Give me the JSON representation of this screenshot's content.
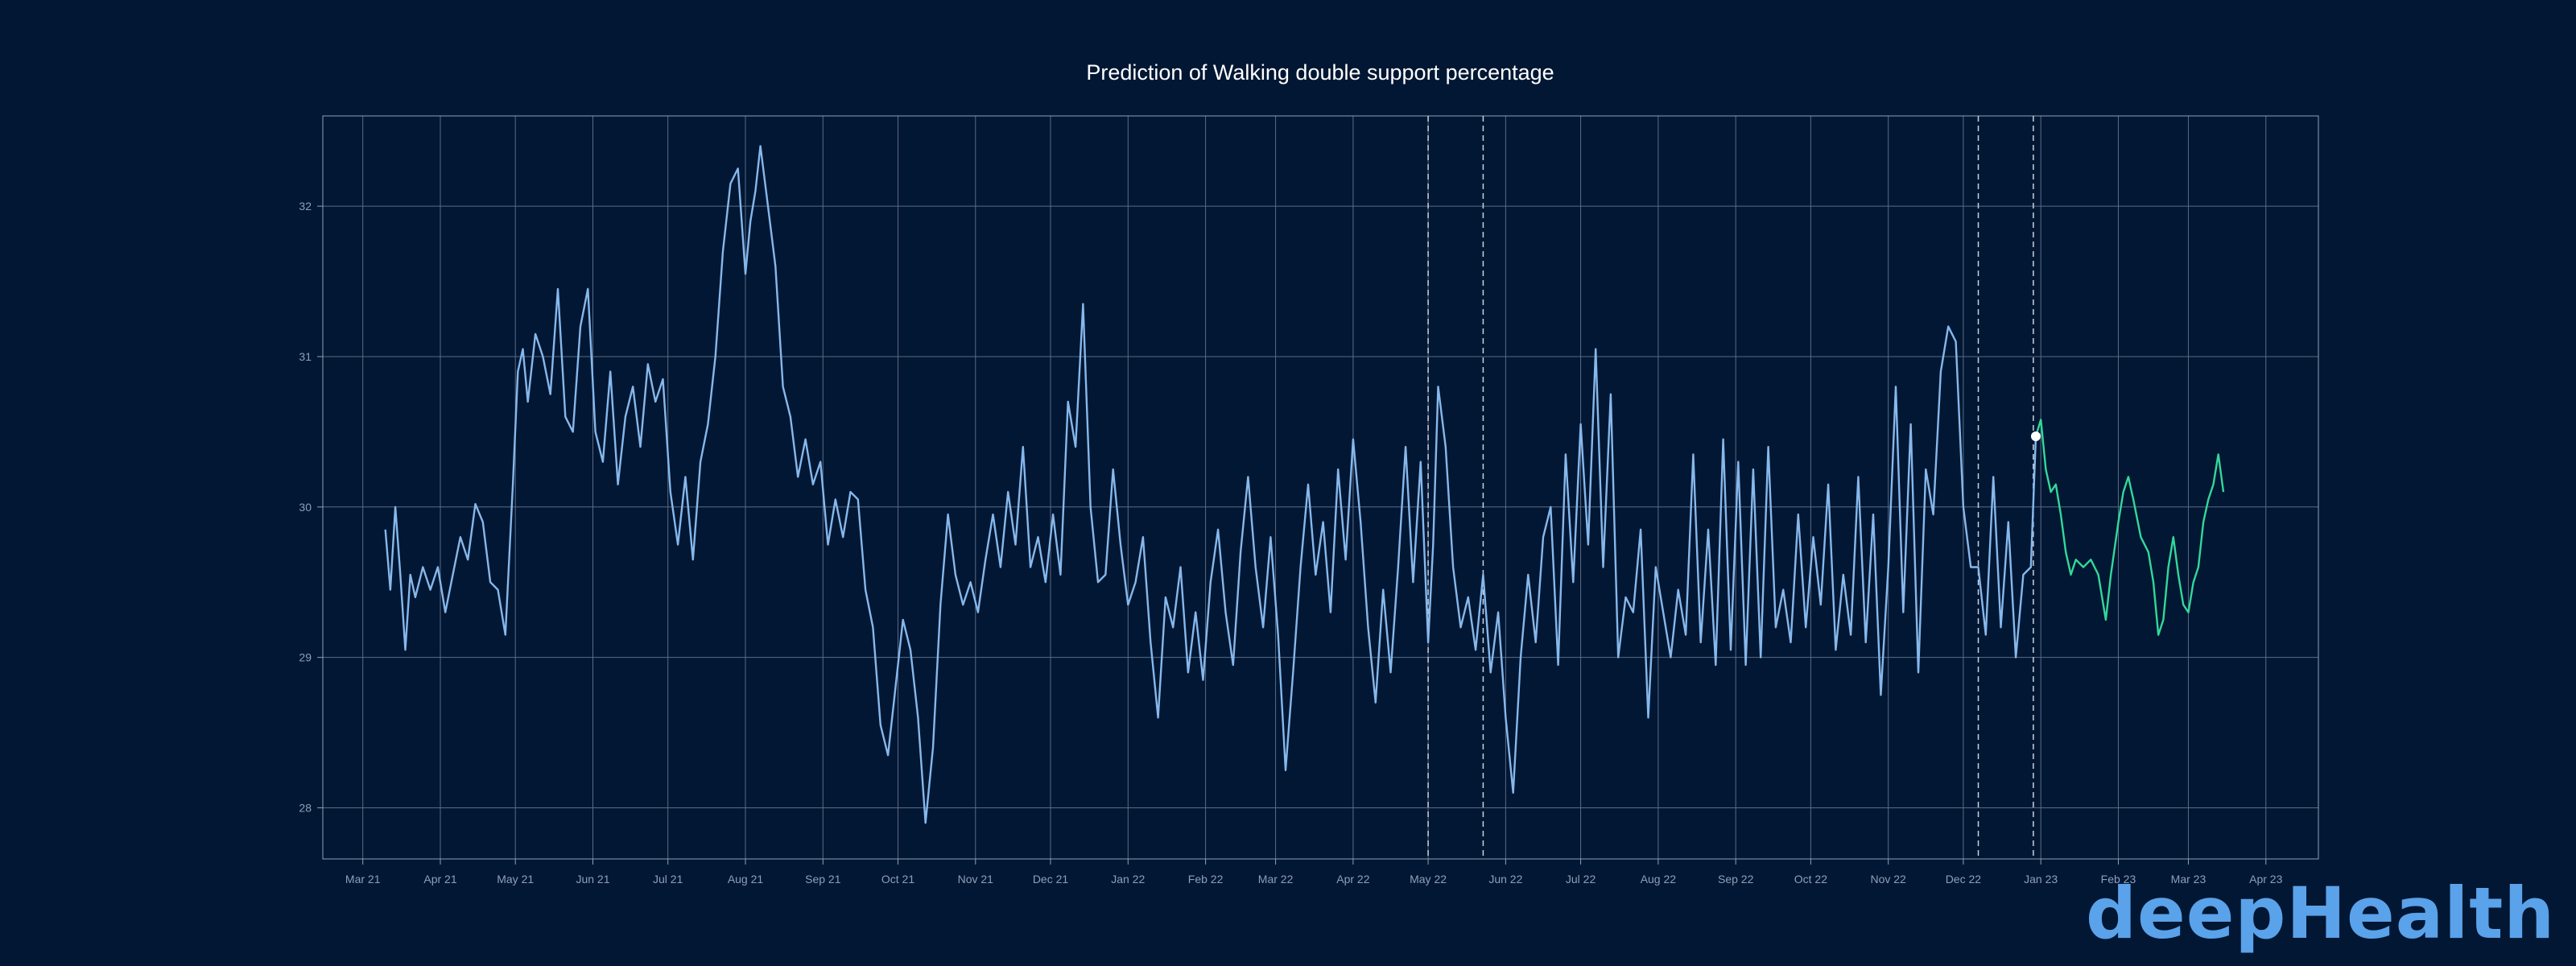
{
  "chart_data": {
    "type": "line",
    "title": "Prediction of Walking double support percentage",
    "xlabel": "",
    "ylabel": "",
    "x_ticks": [
      "Mar 21",
      "Apr 21",
      "May 21",
      "Jun 21",
      "Jul 21",
      "Aug 21",
      "Sep 21",
      "Oct 21",
      "Nov 21",
      "Dec 21",
      "Jan 22",
      "Feb 22",
      "Mar 22",
      "Apr 22",
      "May 22",
      "Jun 22",
      "Jul 22",
      "Aug 22",
      "Sep 22",
      "Oct 22",
      "Nov 22",
      "Dec 22",
      "Jan 23",
      "Feb 23",
      "Mar 23",
      "Apr 23"
    ],
    "y_ticks": [
      28,
      29,
      30,
      31,
      32
    ],
    "xlim": [
      "2021-02-13",
      "2023-04-22"
    ],
    "ylim": [
      27.66,
      32.6
    ],
    "grid": true,
    "legend": "none",
    "series_colors": {
      "history": "#86b8ec",
      "forecast": "#33d89a",
      "axis": "#8f9fb8",
      "grid": "#5b6b86"
    },
    "vlines": [
      "2022-05-01",
      "2022-05-23",
      "2022-12-07",
      "2022-12-29"
    ],
    "marker": {
      "x": "2022-12-30",
      "y": 30.47
    },
    "series": [
      {
        "role": "history",
        "points": [
          [
            "2021-03-10",
            29.85
          ],
          [
            "2021-03-12",
            29.45
          ],
          [
            "2021-03-14",
            30.0
          ],
          [
            "2021-03-16",
            29.55
          ],
          [
            "2021-03-18",
            29.05
          ],
          [
            "2021-03-20",
            29.55
          ],
          [
            "2021-03-22",
            29.4
          ],
          [
            "2021-03-25",
            29.6
          ],
          [
            "2021-03-28",
            29.45
          ],
          [
            "2021-03-31",
            29.6
          ],
          [
            "2021-04-03",
            29.3
          ],
          [
            "2021-04-06",
            29.55
          ],
          [
            "2021-04-09",
            29.8
          ],
          [
            "2021-04-12",
            29.65
          ],
          [
            "2021-04-15",
            30.02
          ],
          [
            "2021-04-18",
            29.9
          ],
          [
            "2021-04-21",
            29.5
          ],
          [
            "2021-04-24",
            29.45
          ],
          [
            "2021-04-27",
            29.15
          ],
          [
            "2021-04-30",
            30.15
          ],
          [
            "2021-05-02",
            30.9
          ],
          [
            "2021-05-04",
            31.05
          ],
          [
            "2021-05-06",
            30.7
          ],
          [
            "2021-05-09",
            31.15
          ],
          [
            "2021-05-12",
            31.0
          ],
          [
            "2021-05-15",
            30.75
          ],
          [
            "2021-05-18",
            31.45
          ],
          [
            "2021-05-21",
            30.6
          ],
          [
            "2021-05-24",
            30.5
          ],
          [
            "2021-05-27",
            31.2
          ],
          [
            "2021-05-30",
            31.45
          ],
          [
            "2021-06-02",
            30.5
          ],
          [
            "2021-06-05",
            30.3
          ],
          [
            "2021-06-08",
            30.9
          ],
          [
            "2021-06-11",
            30.15
          ],
          [
            "2021-06-14",
            30.6
          ],
          [
            "2021-06-17",
            30.8
          ],
          [
            "2021-06-20",
            30.4
          ],
          [
            "2021-06-23",
            30.95
          ],
          [
            "2021-06-26",
            30.7
          ],
          [
            "2021-06-29",
            30.85
          ],
          [
            "2021-07-02",
            30.1
          ],
          [
            "2021-07-05",
            29.75
          ],
          [
            "2021-07-08",
            30.2
          ],
          [
            "2021-07-11",
            29.65
          ],
          [
            "2021-07-14",
            30.3
          ],
          [
            "2021-07-17",
            30.55
          ],
          [
            "2021-07-20",
            31.0
          ],
          [
            "2021-07-23",
            31.7
          ],
          [
            "2021-07-26",
            32.15
          ],
          [
            "2021-07-29",
            32.25
          ],
          [
            "2021-08-01",
            31.55
          ],
          [
            "2021-08-03",
            31.9
          ],
          [
            "2021-08-05",
            32.1
          ],
          [
            "2021-08-07",
            32.4
          ],
          [
            "2021-08-10",
            32.0
          ],
          [
            "2021-08-13",
            31.6
          ],
          [
            "2021-08-16",
            30.8
          ],
          [
            "2021-08-19",
            30.6
          ],
          [
            "2021-08-22",
            30.2
          ],
          [
            "2021-08-25",
            30.45
          ],
          [
            "2021-08-28",
            30.15
          ],
          [
            "2021-08-31",
            30.3
          ],
          [
            "2021-09-03",
            29.75
          ],
          [
            "2021-09-06",
            30.05
          ],
          [
            "2021-09-09",
            29.8
          ],
          [
            "2021-09-12",
            30.1
          ],
          [
            "2021-09-15",
            30.05
          ],
          [
            "2021-09-18",
            29.45
          ],
          [
            "2021-09-21",
            29.2
          ],
          [
            "2021-09-24",
            28.55
          ],
          [
            "2021-09-27",
            28.35
          ],
          [
            "2021-09-30",
            28.8
          ],
          [
            "2021-10-03",
            29.25
          ],
          [
            "2021-10-06",
            29.05
          ],
          [
            "2021-10-09",
            28.6
          ],
          [
            "2021-10-12",
            27.9
          ],
          [
            "2021-10-15",
            28.4
          ],
          [
            "2021-10-18",
            29.35
          ],
          [
            "2021-10-21",
            29.95
          ],
          [
            "2021-10-24",
            29.55
          ],
          [
            "2021-10-27",
            29.35
          ],
          [
            "2021-10-30",
            29.5
          ],
          [
            "2021-11-02",
            29.3
          ],
          [
            "2021-11-05",
            29.65
          ],
          [
            "2021-11-08",
            29.95
          ],
          [
            "2021-11-11",
            29.6
          ],
          [
            "2021-11-14",
            30.1
          ],
          [
            "2021-11-17",
            29.75
          ],
          [
            "2021-11-20",
            30.4
          ],
          [
            "2021-11-23",
            29.6
          ],
          [
            "2021-11-26",
            29.8
          ],
          [
            "2021-11-29",
            29.5
          ],
          [
            "2021-12-02",
            29.95
          ],
          [
            "2021-12-05",
            29.55
          ],
          [
            "2021-12-08",
            30.7
          ],
          [
            "2021-12-11",
            30.4
          ],
          [
            "2021-12-14",
            31.35
          ],
          [
            "2021-12-17",
            30.0
          ],
          [
            "2021-12-20",
            29.5
          ],
          [
            "2021-12-23",
            29.55
          ],
          [
            "2021-12-26",
            30.25
          ],
          [
            "2021-12-29",
            29.75
          ],
          [
            "2022-01-01",
            29.35
          ],
          [
            "2022-01-04",
            29.5
          ],
          [
            "2022-01-07",
            29.8
          ],
          [
            "2022-01-10",
            29.1
          ],
          [
            "2022-01-13",
            28.6
          ],
          [
            "2022-01-16",
            29.4
          ],
          [
            "2022-01-19",
            29.2
          ],
          [
            "2022-01-22",
            29.6
          ],
          [
            "2022-01-25",
            28.9
          ],
          [
            "2022-01-28",
            29.3
          ],
          [
            "2022-01-31",
            28.85
          ],
          [
            "2022-02-03",
            29.5
          ],
          [
            "2022-02-06",
            29.85
          ],
          [
            "2022-02-09",
            29.3
          ],
          [
            "2022-02-12",
            28.95
          ],
          [
            "2022-02-15",
            29.7
          ],
          [
            "2022-02-18",
            30.2
          ],
          [
            "2022-02-21",
            29.6
          ],
          [
            "2022-02-24",
            29.2
          ],
          [
            "2022-02-27",
            29.8
          ],
          [
            "2022-03-02",
            29.15
          ],
          [
            "2022-03-05",
            28.25
          ],
          [
            "2022-03-08",
            28.9
          ],
          [
            "2022-03-11",
            29.6
          ],
          [
            "2022-03-14",
            30.15
          ],
          [
            "2022-03-17",
            29.55
          ],
          [
            "2022-03-20",
            29.9
          ],
          [
            "2022-03-23",
            29.3
          ],
          [
            "2022-03-26",
            30.25
          ],
          [
            "2022-03-29",
            29.65
          ],
          [
            "2022-04-01",
            30.45
          ],
          [
            "2022-04-04",
            29.9
          ],
          [
            "2022-04-07",
            29.2
          ],
          [
            "2022-04-10",
            28.7
          ],
          [
            "2022-04-13",
            29.45
          ],
          [
            "2022-04-16",
            28.9
          ],
          [
            "2022-04-19",
            29.6
          ],
          [
            "2022-04-22",
            30.4
          ],
          [
            "2022-04-25",
            29.5
          ],
          [
            "2022-04-28",
            30.3
          ],
          [
            "2022-05-01",
            29.1
          ],
          [
            "2022-05-03",
            29.75
          ],
          [
            "2022-05-05",
            30.8
          ],
          [
            "2022-05-08",
            30.4
          ],
          [
            "2022-05-11",
            29.6
          ],
          [
            "2022-05-14",
            29.2
          ],
          [
            "2022-05-17",
            29.4
          ],
          [
            "2022-05-20",
            29.05
          ],
          [
            "2022-05-23",
            29.55
          ],
          [
            "2022-05-26",
            28.9
          ],
          [
            "2022-05-29",
            29.3
          ],
          [
            "2022-06-01",
            28.6
          ],
          [
            "2022-06-04",
            28.1
          ],
          [
            "2022-06-07",
            29.0
          ],
          [
            "2022-06-10",
            29.55
          ],
          [
            "2022-06-13",
            29.1
          ],
          [
            "2022-06-16",
            29.8
          ],
          [
            "2022-06-19",
            30.0
          ],
          [
            "2022-06-22",
            28.95
          ],
          [
            "2022-06-25",
            30.35
          ],
          [
            "2022-06-28",
            29.5
          ],
          [
            "2022-07-01",
            30.55
          ],
          [
            "2022-07-04",
            29.75
          ],
          [
            "2022-07-07",
            31.05
          ],
          [
            "2022-07-10",
            29.6
          ],
          [
            "2022-07-13",
            30.75
          ],
          [
            "2022-07-16",
            29.0
          ],
          [
            "2022-07-19",
            29.4
          ],
          [
            "2022-07-22",
            29.3
          ],
          [
            "2022-07-25",
            29.85
          ],
          [
            "2022-07-28",
            28.6
          ],
          [
            "2022-07-31",
            29.6
          ],
          [
            "2022-08-03",
            29.3
          ],
          [
            "2022-08-06",
            29.0
          ],
          [
            "2022-08-09",
            29.45
          ],
          [
            "2022-08-12",
            29.15
          ],
          [
            "2022-08-15",
            30.35
          ],
          [
            "2022-08-18",
            29.1
          ],
          [
            "2022-08-21",
            29.85
          ],
          [
            "2022-08-24",
            28.95
          ],
          [
            "2022-08-27",
            30.45
          ],
          [
            "2022-08-30",
            29.05
          ],
          [
            "2022-09-02",
            30.3
          ],
          [
            "2022-09-05",
            28.95
          ],
          [
            "2022-09-08",
            30.25
          ],
          [
            "2022-09-11",
            29.0
          ],
          [
            "2022-09-14",
            30.4
          ],
          [
            "2022-09-17",
            29.2
          ],
          [
            "2022-09-20",
            29.45
          ],
          [
            "2022-09-23",
            29.1
          ],
          [
            "2022-09-26",
            29.95
          ],
          [
            "2022-09-29",
            29.2
          ],
          [
            "2022-10-02",
            29.8
          ],
          [
            "2022-10-05",
            29.35
          ],
          [
            "2022-10-08",
            30.15
          ],
          [
            "2022-10-11",
            29.05
          ],
          [
            "2022-10-14",
            29.55
          ],
          [
            "2022-10-17",
            29.15
          ],
          [
            "2022-10-20",
            30.2
          ],
          [
            "2022-10-23",
            29.1
          ],
          [
            "2022-10-26",
            29.95
          ],
          [
            "2022-10-29",
            28.75
          ],
          [
            "2022-11-01",
            29.6
          ],
          [
            "2022-11-04",
            30.8
          ],
          [
            "2022-11-07",
            29.3
          ],
          [
            "2022-11-10",
            30.55
          ],
          [
            "2022-11-13",
            28.9
          ],
          [
            "2022-11-16",
            30.25
          ],
          [
            "2022-11-19",
            29.95
          ],
          [
            "2022-11-22",
            30.9
          ],
          [
            "2022-11-25",
            31.2
          ],
          [
            "2022-11-28",
            31.1
          ],
          [
            "2022-12-01",
            30.0
          ],
          [
            "2022-12-04",
            29.6
          ],
          [
            "2022-12-07",
            29.6
          ],
          [
            "2022-12-10",
            29.15
          ],
          [
            "2022-12-13",
            30.2
          ],
          [
            "2022-12-16",
            29.2
          ],
          [
            "2022-12-19",
            29.9
          ],
          [
            "2022-12-22",
            29.0
          ],
          [
            "2022-12-25",
            29.55
          ],
          [
            "2022-12-28",
            29.6
          ],
          [
            "2022-12-30",
            30.47
          ]
        ]
      },
      {
        "role": "forecast",
        "points": [
          [
            "2022-12-30",
            30.47
          ],
          [
            "2023-01-01",
            30.58
          ],
          [
            "2023-01-03",
            30.25
          ],
          [
            "2023-01-05",
            30.1
          ],
          [
            "2023-01-07",
            30.15
          ],
          [
            "2023-01-09",
            29.95
          ],
          [
            "2023-01-11",
            29.7
          ],
          [
            "2023-01-13",
            29.55
          ],
          [
            "2023-01-15",
            29.65
          ],
          [
            "2023-01-18",
            29.6
          ],
          [
            "2023-01-21",
            29.65
          ],
          [
            "2023-01-24",
            29.55
          ],
          [
            "2023-01-27",
            29.25
          ],
          [
            "2023-01-29",
            29.55
          ],
          [
            "2023-02-01",
            29.9
          ],
          [
            "2023-02-03",
            30.1
          ],
          [
            "2023-02-05",
            30.2
          ],
          [
            "2023-02-07",
            30.05
          ],
          [
            "2023-02-10",
            29.8
          ],
          [
            "2023-02-13",
            29.7
          ],
          [
            "2023-02-15",
            29.5
          ],
          [
            "2023-02-17",
            29.15
          ],
          [
            "2023-02-19",
            29.25
          ],
          [
            "2023-02-21",
            29.6
          ],
          [
            "2023-02-23",
            29.8
          ],
          [
            "2023-02-25",
            29.55
          ],
          [
            "2023-02-27",
            29.35
          ],
          [
            "2023-03-01",
            29.3
          ],
          [
            "2023-03-03",
            29.5
          ],
          [
            "2023-03-05",
            29.6
          ],
          [
            "2023-03-07",
            29.9
          ],
          [
            "2023-03-09",
            30.05
          ],
          [
            "2023-03-11",
            30.15
          ],
          [
            "2023-03-13",
            30.35
          ],
          [
            "2023-03-15",
            30.1
          ]
        ]
      }
    ]
  },
  "brand": {
    "logo_text": "deepHealth"
  }
}
